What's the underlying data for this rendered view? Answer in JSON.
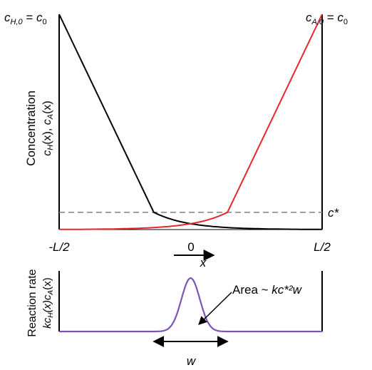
{
  "chart_data": [
    {
      "type": "line",
      "ylabel": "Concentration",
      "ylabel_funcs": {
        "h": "c",
        "hsub": "H",
        "hx": "(x), ",
        "a": "c",
        "asub": "A",
        "ax": "(x)"
      },
      "xticks": [
        "-L/2",
        "0",
        "L/2"
      ],
      "xlabel": "x",
      "x_direction_arrow": true,
      "corner_left": {
        "c": "c",
        "sub": "H,0",
        "eq": " = ",
        "c2": "c",
        "sub2": "0"
      },
      "corner_right": {
        "c": "c",
        "sub": "A,0",
        "eq": " = ",
        "c2": "c",
        "sub2": "0"
      },
      "threshold_label": "c*",
      "xlim": [
        -0.5,
        0.5
      ],
      "ylim": [
        0,
        1
      ],
      "threshold": 0.08,
      "series": [
        {
          "color": "#000000",
          "segments": [
            {
              "kind": "linear",
              "x": [
                -0.5,
                -0.14
              ],
              "y": [
                1.0,
                0.08
              ]
            },
            {
              "kind": "exp_decay",
              "x": [
                -0.14,
                0.5
              ],
              "y0": 0.08,
              "scale": 0.13
            }
          ]
        },
        {
          "color": "#e8262c",
          "segments": [
            {
              "kind": "exp_rise",
              "x": [
                -0.5,
                0.14
              ],
              "y1": 0.08,
              "scale": 0.13
            },
            {
              "kind": "linear",
              "x": [
                0.14,
                0.5
              ],
              "y": [
                0.08,
                1.0
              ]
            }
          ]
        }
      ],
      "colors": {
        "threshold": "#8a8a8a",
        "axes": "#000000"
      }
    },
    {
      "type": "line",
      "ylabel": "Reaction rate",
      "ylabel_funcs": {
        "k": "kc",
        "hsub": "H",
        "hx": "(x)c",
        "asub": "A",
        "ax": "(x)"
      },
      "annotation": {
        "text": "Area ~ ",
        "expr": "kc*²w"
      },
      "width_label": "w",
      "peak": {
        "center": 0.0,
        "sigma": 0.035,
        "height": 1.0
      },
      "width_marker": [
        -0.14,
        0.14
      ],
      "xlim": [
        -0.5,
        0.5
      ],
      "ylim": [
        0,
        1
      ],
      "colors": {
        "curve": "#7b55b6",
        "axes": "#000000"
      }
    }
  ]
}
